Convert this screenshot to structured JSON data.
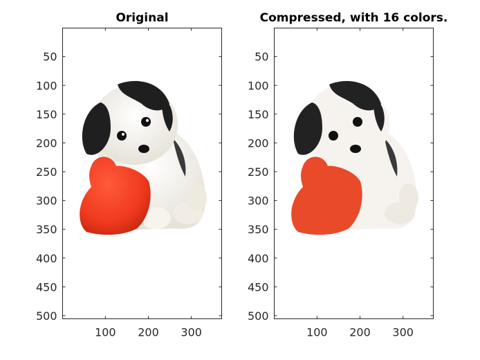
{
  "chart_data": [
    {
      "type": "image",
      "title": "Original",
      "image_width": 370,
      "image_height": 505,
      "xlim": [
        0.5,
        370.5
      ],
      "ylim": [
        0.5,
        505.5
      ],
      "y_reversed": true,
      "x_ticks": [
        100,
        200,
        300
      ],
      "y_ticks": [
        50,
        100,
        150,
        200,
        250,
        300,
        350,
        400,
        450,
        500
      ],
      "x_tick_labels": [
        "100",
        "200",
        "300"
      ],
      "y_tick_labels": [
        "50",
        "100",
        "150",
        "200",
        "250",
        "300",
        "350",
        "400",
        "450",
        "500"
      ],
      "content": "puppy holding a red heart plush",
      "colors": {
        "heart": "#f03a1f",
        "fur_dark": "#1f1f1f",
        "fur_light": "#f4f1ea"
      }
    },
    {
      "type": "image",
      "title": "Compressed, with 16 colors.",
      "image_width": 370,
      "image_height": 505,
      "xlim": [
        0.5,
        370.5
      ],
      "ylim": [
        0.5,
        505.5
      ],
      "y_reversed": true,
      "x_ticks": [
        100,
        200,
        300
      ],
      "y_ticks": [
        50,
        100,
        150,
        200,
        250,
        300,
        350,
        400,
        450,
        500
      ],
      "x_tick_labels": [
        "100",
        "200",
        "300"
      ],
      "y_tick_labels": [
        "50",
        "100",
        "150",
        "200",
        "250",
        "300",
        "350",
        "400",
        "450",
        "500"
      ],
      "content": "same image quantized to 16 colors",
      "colors": {
        "heart": "#e84a2a",
        "fur_dark": "#222222",
        "fur_light": "#f6f3ee"
      }
    }
  ]
}
